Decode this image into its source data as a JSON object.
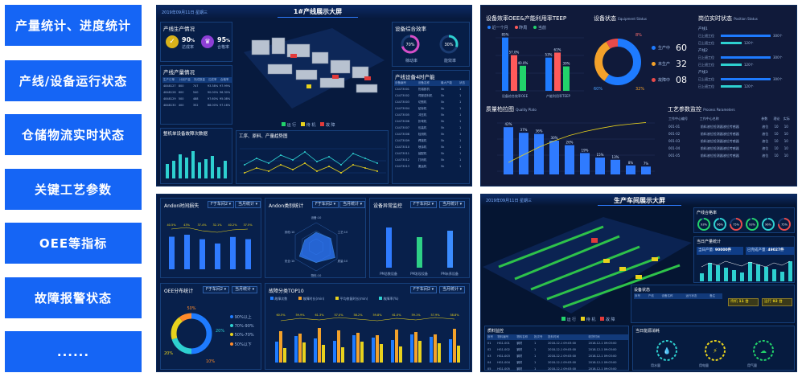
{
  "nav": {
    "items": [
      {
        "label": "产量统计、进度统计"
      },
      {
        "label": "产线/设备运行状态"
      },
      {
        "label": "仓储物流实时状态"
      },
      {
        "label": "关键工艺参数"
      },
      {
        "label": "OEE等指标"
      },
      {
        "label": "故障报警状态"
      },
      {
        "label": "......"
      }
    ]
  },
  "p1": {
    "title": "1#产线展示大屏",
    "date": "2019年09月11日 星期三",
    "prod_title": "产线生产情况",
    "rate1_value": "90",
    "rate1_unit": "%",
    "rate1_label": "达成率",
    "rate2_value": "95",
    "rate2_unit": "%",
    "rate2_label": "合格率",
    "output_title": "产线产量情况",
    "output_headers": [
      "生产订单",
      "计划产量",
      "完成数量",
      "达成率",
      "合格率"
    ],
    "output_rows": [
      [
        "4848127",
        "800",
        "747",
        "93.38%",
        "97.99%"
      ],
      [
        "4848128",
        "600",
        "540",
        "90.00%",
        "96.30%"
      ],
      [
        "4848129",
        "500",
        "488",
        "97.60%",
        "95.08%"
      ],
      [
        "4848130",
        "400",
        "352",
        "88.00%",
        "97.16%"
      ]
    ],
    "fault_title": "整机单设备故障次数据",
    "rate_title": "工序、原料、产量趋势图",
    "oee_title": "设备综合效率",
    "oee1_value": "70%",
    "oee1_label": "稼动率",
    "oee2_value": "30%",
    "oee2_label": "能效率",
    "device_title": "产线设备4时产能",
    "device_headers": [
      "设备编号",
      "设备名称",
      "最大产能",
      "状态"
    ],
    "device_rows": [
      [
        "C4473001",
        "热熔胶机",
        "5k",
        "1"
      ],
      [
        "C4473002",
        "伺服送料机",
        "5k",
        "1"
      ],
      [
        "C4473003",
        "切割机",
        "5k",
        "1"
      ],
      [
        "C4473004",
        "贴标机",
        "5k",
        "1"
      ],
      [
        "C4473005",
        "冲压机",
        "5k",
        "1"
      ],
      [
        "C4473006",
        "折弯机",
        "5k",
        "1"
      ],
      [
        "C4473007",
        "包装机",
        "5k",
        "1"
      ],
      [
        "C4473008",
        "检测机",
        "5k",
        "1"
      ],
      [
        "C4473009",
        "焊接机",
        "5k",
        "1"
      ],
      [
        "C4473010",
        "喷涂机",
        "5k",
        "1"
      ],
      [
        "C4473011",
        "装配机",
        "5k",
        "1"
      ],
      [
        "C4473012",
        "打码机",
        "5k",
        "1"
      ],
      [
        "C4473013",
        "搬运机",
        "5k",
        "1"
      ]
    ],
    "legend": [
      {
        "label": "运 行",
        "color": "#22d36b"
      },
      {
        "label": "待 机",
        "color": "#e8d21d"
      },
      {
        "label": "故 障",
        "color": "#e23a3a"
      }
    ]
  },
  "p2": {
    "oee_title": "设备效率OEE&产能利用率TEEP",
    "oee_legend": [
      "近一个月",
      "昨周",
      "当前"
    ],
    "oee_groups": [
      {
        "label": "设备综合效率OEE",
        "values": [
          85,
          57,
          40
        ]
      },
      {
        "label": "产能利用率TEEP",
        "values": [
          53,
          61,
          39
        ]
      }
    ],
    "oee_value_labels": [
      [
        "85%",
        "57.0%",
        "40.0%"
      ],
      [
        "53%",
        "61%",
        "39%"
      ]
    ],
    "status_title": "设备状态",
    "status_title_en": "Equipment Status",
    "donut_labels": [
      "8%",
      "60%",
      "32%"
    ],
    "status_items": [
      {
        "label": "生产中",
        "sub": "Produce",
        "value": "60"
      },
      {
        "label": "未生产",
        "sub": "Idle",
        "value": "32"
      },
      {
        "label": "故障中",
        "sub": "Failure",
        "value": "08"
      }
    ],
    "post_title": "岗位实时状态",
    "post_title_en": "Position Status",
    "posts": [
      {
        "group": "产线1",
        "rows": [
          {
            "label": "已上班工位",
            "value": "300个"
          },
          {
            "label": "已上班工位",
            "value": "120个"
          }
        ]
      },
      {
        "group": "产线2",
        "rows": [
          {
            "label": "已上班工位",
            "value": "300个"
          },
          {
            "label": "已上班工位",
            "value": "120个"
          }
        ]
      },
      {
        "group": "产线3",
        "rows": [
          {
            "label": "已上班工位",
            "value": "300个"
          },
          {
            "label": "已上班工位",
            "value": "120个"
          }
        ]
      }
    ],
    "quality_title": "质量柏拉图",
    "quality_title_en": "Quality Plato",
    "quality_values": [
      "42%",
      "37%",
      "36%",
      "30%",
      "26%",
      "19%",
      "15%",
      "13%",
      "8%",
      "7%"
    ],
    "process_title": "工艺参数监控",
    "process_title_en": "Process Parameters",
    "process_headers": [
      "工作中心编号",
      "工作中心名称",
      "参数",
      "理论",
      "实际"
    ],
    "process_rows": [
      [
        "001-01",
        "前料液位检测器液位传感器",
        "液位",
        "10",
        "10"
      ],
      [
        "001-02",
        "前料液位检测器液位传感器",
        "液位",
        "10",
        "10"
      ],
      [
        "001-03",
        "前料液位检测器液位传感器",
        "液位",
        "10",
        "10"
      ],
      [
        "001-04",
        "前料液位检测器液位传感器",
        "液位",
        "10",
        "10"
      ],
      [
        "001-05",
        "前料液位检测器液位传感器",
        "液位",
        "10",
        "10"
      ]
    ]
  },
  "p3": {
    "andon_time_title": "Andon时间损失",
    "andon_count_title": "Andon类别统计",
    "abnormal_title": "设备异常监控",
    "oee_dist_title": "OEE分布统计",
    "fault_top_title": "故障分类TOP10",
    "sel_line": "F于车间2",
    "sel_period": "当月统计",
    "andon_time_labels": [
      "40.5%",
      "43%",
      "37.4%",
      "32.1%",
      "40.2%",
      "37.5%"
    ],
    "radar_labels": [
      "设备:10",
      "工艺:10",
      "质量:10",
      "物料:10",
      "安全:10",
      "其他:10"
    ],
    "abnormal_labels": [
      "PM总数设备",
      "PM发现设备",
      "PM未养设备"
    ],
    "oee_legend": [
      {
        "label": "90%以上",
        "color": "#1e7bff"
      },
      {
        "label": "70%-90%",
        "color": "#2ed0d0"
      },
      {
        "label": "50%-70%",
        "color": "#e8d21d"
      },
      {
        "label": "50%以下",
        "color": "#ff8a2a"
      }
    ],
    "oee_pcts": [
      "50%",
      "20%",
      "20%",
      "10%"
    ],
    "fault_legend": [
      "故障次数",
      "故障时长(min)",
      "平均修复时长(min)",
      "故障率(%)"
    ],
    "fault_top_labels": [
      "60.5%",
      "59.9%",
      "61.3%",
      "57.0%",
      "58.2%",
      "59.8%",
      "61.0%",
      "59.1%",
      "57.9%",
      "58.8%"
    ]
  },
  "p4": {
    "title": "生产车间展示大屏",
    "date": "2019年09月11日 星期三",
    "rate_title": "产线合格率",
    "rates": [
      "93%",
      "96%",
      "75%",
      "93%",
      "96%",
      "75%"
    ],
    "output_title": "当日产量统计",
    "total_label": "当日产量",
    "total_value": "90000件",
    "done_label": "已完成产量",
    "done_value": "49027件",
    "device_title": "设备状态",
    "device_headers": [
      "序号",
      "产线",
      "设备名称",
      "运行状态",
      "备注"
    ],
    "stats": [
      {
        "label": "待机",
        "value": "11 台"
      },
      {
        "label": "运行",
        "value": "92 台"
      }
    ],
    "material_title": "质料监控",
    "material_headers": [
      "序号",
      "物料编号",
      "物料名称",
      "批次号",
      "投料时间",
      "收货时间"
    ],
    "material_rows": [
      [
        "01",
        "HG1-001",
        "钢材",
        "1",
        "2018-12-1 09:03:00",
        "2018-12-1 09:03:00"
      ],
      [
        "02",
        "HG1-002",
        "钢材",
        "1",
        "2018-12-1 09:03:00",
        "2018-12-1 09:03:00"
      ],
      [
        "03",
        "HG1-003",
        "钢材",
        "1",
        "2018-12-1 09:03:00",
        "2018-12-1 09:03:00"
      ],
      [
        "04",
        "HG1-004",
        "钢材",
        "1",
        "2018-12-1 09:03:00",
        "2018-12-1 09:03:00"
      ],
      [
        "05",
        "HG1-005",
        "钢材",
        "1",
        "2018-12-1 09:03:00",
        "2018-12-1 09:03:00"
      ],
      [
        "06",
        "HG1-006",
        "钢材",
        "1",
        "2018-12-1 09:03:00",
        "2018-12-1 09:03:00"
      ]
    ],
    "alarm_title": "当日能源消耗",
    "energy": [
      {
        "label": "用水量"
      },
      {
        "label": "用电量"
      },
      {
        "label": "用气量"
      }
    ],
    "legend": [
      {
        "label": "运 行",
        "color": "#22d36b"
      },
      {
        "label": "待 机",
        "color": "#e8d21d"
      },
      {
        "label": "故 障",
        "color": "#e23a3a"
      }
    ]
  }
}
